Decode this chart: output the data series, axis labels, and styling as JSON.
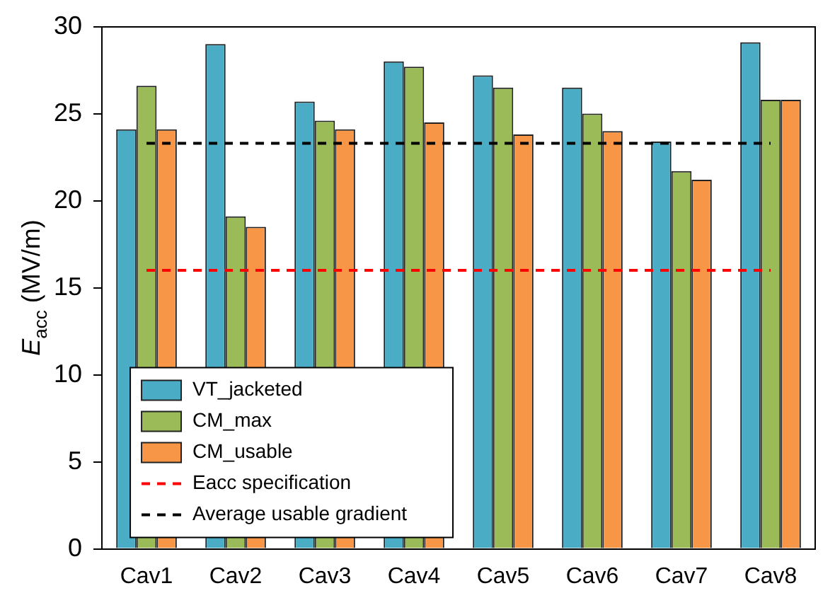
{
  "chart_data": {
    "type": "bar",
    "ylabel": "E$_{acc}$ (MV/m)",
    "categories": [
      "Cav1",
      "Cav2",
      "Cav3",
      "Cav4",
      "Cav5",
      "Cav6",
      "Cav7",
      "Cav8"
    ],
    "series": [
      {
        "name": "VT_jacketed",
        "color": "#4bacc6",
        "values": [
          24.1,
          29.0,
          25.7,
          28.0,
          27.2,
          26.5,
          23.4,
          29.1
        ]
      },
      {
        "name": "CM_max",
        "color": "#9bbb59",
        "values": [
          26.6,
          19.1,
          24.6,
          27.7,
          26.5,
          25.0,
          21.7,
          25.8
        ]
      },
      {
        "name": "CM_usable",
        "color": "#f79646",
        "values": [
          24.1,
          18.5,
          24.1,
          24.5,
          23.8,
          24.0,
          21.2,
          25.8
        ]
      }
    ],
    "ref_lines": [
      {
        "axis": "y",
        "value": 16,
        "label": "Eacc specification",
        "color": "#ff0000",
        "line_style": "dashed"
      },
      {
        "axis": "y",
        "value": 23.3,
        "label": "Average usable gradient",
        "color": "#000000",
        "line_style": "dashed"
      }
    ],
    "ylim": [
      0,
      30
    ],
    "yticks": [
      0,
      5,
      10,
      15,
      20,
      25,
      30
    ],
    "grid": false,
    "legend": "bottom left"
  }
}
